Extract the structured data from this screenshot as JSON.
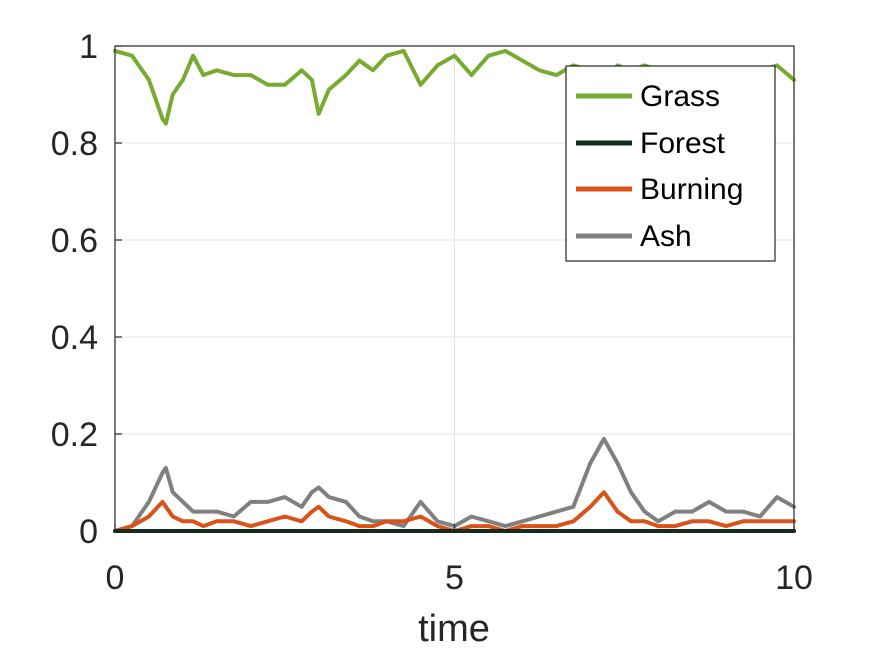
{
  "chart_data": {
    "type": "line",
    "title": "",
    "xlabel": "time",
    "ylabel": "",
    "xlim": [
      0,
      10
    ],
    "ylim": [
      0,
      1
    ],
    "xticks": [
      0,
      5,
      10
    ],
    "yticks": [
      0,
      0.2,
      0.4,
      0.6,
      0.8,
      1
    ],
    "xtick_labels": [
      "0",
      "5",
      "10"
    ],
    "ytick_labels": [
      "0",
      "0.2",
      "0.4",
      "0.6",
      "0.8",
      "1"
    ],
    "grid": true,
    "legend_position": "top-right",
    "x": [
      0,
      0.25,
      0.5,
      0.7,
      0.75,
      0.85,
      1.0,
      1.15,
      1.3,
      1.5,
      1.75,
      2.0,
      2.25,
      2.5,
      2.75,
      2.9,
      3.0,
      3.15,
      3.4,
      3.6,
      3.8,
      4.0,
      4.25,
      4.5,
      4.75,
      5.0,
      5.25,
      5.5,
      5.75,
      6.0,
      6.25,
      6.5,
      6.75,
      7.0,
      7.2,
      7.4,
      7.6,
      7.8,
      8.0,
      8.25,
      8.5,
      8.75,
      9.0,
      9.25,
      9.5,
      9.75,
      10.0
    ],
    "series": [
      {
        "name": "Grass",
        "color": "#77AC30",
        "values": [
          0.99,
          0.98,
          0.93,
          0.85,
          0.84,
          0.9,
          0.93,
          0.98,
          0.94,
          0.95,
          0.94,
          0.94,
          0.92,
          0.92,
          0.95,
          0.93,
          0.86,
          0.91,
          0.94,
          0.97,
          0.95,
          0.98,
          0.99,
          0.92,
          0.96,
          0.98,
          0.94,
          0.98,
          0.99,
          0.97,
          0.95,
          0.94,
          0.96,
          0.95,
          0.92,
          0.96,
          0.95,
          0.96,
          0.95,
          0.94,
          0.93,
          0.94,
          0.95,
          0.94,
          0.95,
          0.96,
          0.93
        ]
      },
      {
        "name": "Forest",
        "color": "#0E2F1E",
        "values": [
          0,
          0,
          0,
          0,
          0,
          0,
          0,
          0,
          0,
          0,
          0,
          0,
          0,
          0,
          0,
          0,
          0,
          0,
          0,
          0,
          0,
          0,
          0,
          0,
          0,
          0,
          0,
          0,
          0,
          0,
          0,
          0,
          0,
          0,
          0,
          0,
          0,
          0,
          0,
          0,
          0,
          0,
          0,
          0,
          0,
          0,
          0
        ]
      },
      {
        "name": "Burning",
        "color": "#D95319",
        "values": [
          0.0,
          0.01,
          0.03,
          0.06,
          0.05,
          0.03,
          0.02,
          0.02,
          0.01,
          0.02,
          0.02,
          0.01,
          0.02,
          0.03,
          0.02,
          0.04,
          0.05,
          0.03,
          0.02,
          0.01,
          0.01,
          0.02,
          0.02,
          0.03,
          0.01,
          0.0,
          0.01,
          0.01,
          0.0,
          0.01,
          0.01,
          0.01,
          0.02,
          0.05,
          0.08,
          0.04,
          0.02,
          0.02,
          0.01,
          0.01,
          0.02,
          0.02,
          0.01,
          0.02,
          0.02,
          0.02,
          0.02
        ]
      },
      {
        "name": "Ash",
        "color": "#808080",
        "values": [
          0.0,
          0.01,
          0.06,
          0.12,
          0.13,
          0.08,
          0.06,
          0.04,
          0.04,
          0.04,
          0.03,
          0.06,
          0.06,
          0.07,
          0.05,
          0.08,
          0.09,
          0.07,
          0.06,
          0.03,
          0.02,
          0.02,
          0.01,
          0.06,
          0.02,
          0.01,
          0.03,
          0.02,
          0.01,
          0.02,
          0.03,
          0.04,
          0.05,
          0.14,
          0.19,
          0.14,
          0.08,
          0.04,
          0.02,
          0.04,
          0.04,
          0.06,
          0.04,
          0.04,
          0.03,
          0.07,
          0.05
        ]
      }
    ]
  }
}
